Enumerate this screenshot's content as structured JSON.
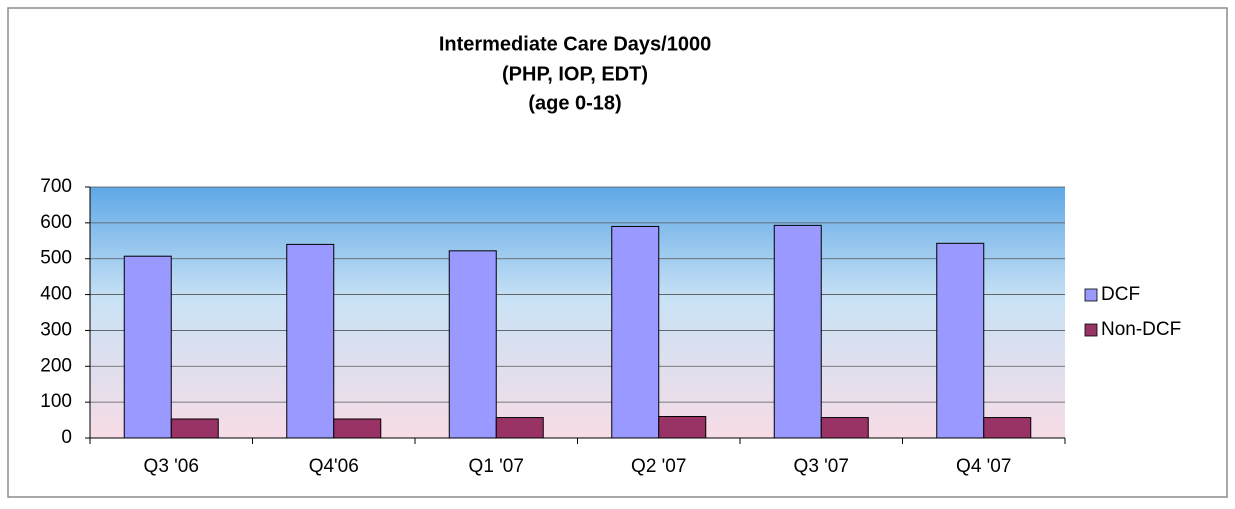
{
  "chart_data": {
    "type": "bar",
    "title": [
      "Intermediate Care Days/1000",
      "(PHP, IOP, EDT)",
      "(age 0-18)"
    ],
    "categories": [
      "Q3 '06",
      "Q4'06",
      "Q1 '07",
      "Q2 '07",
      "Q3 '07",
      "Q4 '07"
    ],
    "series": [
      {
        "name": "DCF",
        "color": "#9999ff",
        "values": [
          507,
          540,
          522,
          590,
          593,
          543
        ]
      },
      {
        "name": "Non-DCF",
        "color": "#993366",
        "values": [
          53,
          53,
          57,
          60,
          57,
          57
        ]
      }
    ],
    "ylim": [
      0,
      700
    ],
    "yticks": [
      0,
      100,
      200,
      300,
      400,
      500,
      600,
      700
    ],
    "grid": true,
    "legend": "right"
  }
}
